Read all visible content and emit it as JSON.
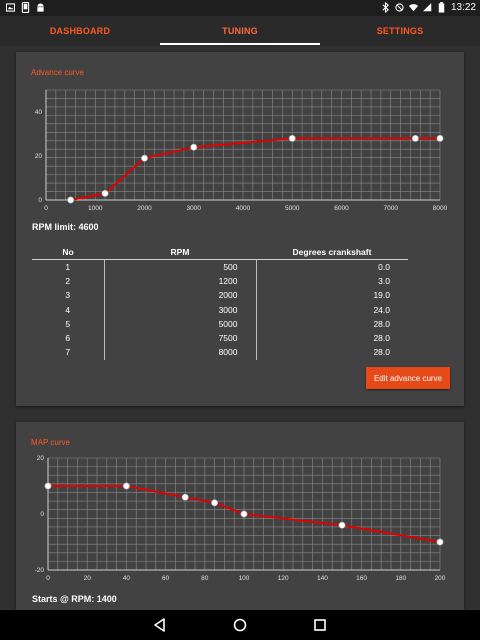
{
  "status_bar": {
    "time": "13:22",
    "left_icons": [
      "photo-icon",
      "phone-icon",
      "android-icon"
    ],
    "right_icons": [
      "bluetooth-icon",
      "mute-icon",
      "wifi-icon",
      "signal-icon",
      "battery-icon"
    ]
  },
  "tabs": [
    {
      "label": "DASHBOARD",
      "active": false
    },
    {
      "label": "TUNING",
      "active": true
    },
    {
      "label": "SETTINGS",
      "active": false
    }
  ],
  "advance": {
    "title": "Advance curve",
    "rpm_limit": "RPM limit: 4600",
    "table": {
      "headers": [
        "No",
        "RPM",
        "Degrees crankshaft"
      ],
      "rows": [
        [
          "1",
          "500",
          "0.0"
        ],
        [
          "2",
          "1200",
          "3.0"
        ],
        [
          "3",
          "2000",
          "19.0"
        ],
        [
          "4",
          "3000",
          "24.0"
        ],
        [
          "5",
          "5000",
          "28.0"
        ],
        [
          "6",
          "7500",
          "28.0"
        ],
        [
          "7",
          "8000",
          "28.0"
        ]
      ]
    },
    "edit_button": "Edit advance curve"
  },
  "map": {
    "title": "MAP curve",
    "starts": "Starts @ RPM: 1400"
  },
  "chart_data": [
    {
      "type": "line",
      "title": "Advance curve",
      "x": [
        500,
        1200,
        2000,
        3000,
        5000,
        7500,
        8000
      ],
      "values": [
        0,
        3,
        19,
        24,
        28,
        28,
        28
      ],
      "xlim": [
        0,
        8000
      ],
      "ylim": [
        0,
        50
      ],
      "xticks": [
        "0",
        "1000",
        "2000",
        "3000",
        "4000",
        "5000",
        "6000",
        "7000",
        "8000"
      ],
      "yticks": [
        "0",
        "20",
        "40"
      ],
      "grid": true,
      "line_color": "#e00000"
    },
    {
      "type": "line",
      "title": "MAP curve",
      "x": [
        0,
        40,
        70,
        85,
        100,
        150,
        200
      ],
      "values": [
        10,
        10,
        6,
        4,
        0,
        -4,
        -10
      ],
      "xlim": [
        0,
        200
      ],
      "ylim": [
        -20,
        20
      ],
      "xticks": [
        "0",
        "20",
        "40",
        "60",
        "80",
        "100",
        "120",
        "140",
        "160",
        "180",
        "200"
      ],
      "yticks": [
        "-20",
        "0",
        "20"
      ],
      "grid": true,
      "line_color": "#e00000"
    }
  ],
  "colors": {
    "accent": "#ff5722",
    "button": "#e64a19",
    "card": "#424242",
    "background": "#303030"
  }
}
